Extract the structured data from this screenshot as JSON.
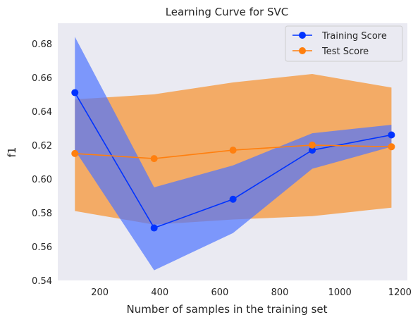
{
  "chart_data": {
    "type": "line",
    "title": "Learning Curve for SVC",
    "xlabel": "Number of samples in the training set",
    "ylabel": "f1",
    "xlim": [
      60,
      1225
    ],
    "ylim": [
      0.54,
      0.692
    ],
    "x_ticks": [
      200,
      400,
      600,
      800,
      1000,
      1200
    ],
    "y_ticks": [
      0.54,
      0.56,
      0.58,
      0.6,
      0.62,
      0.64,
      0.66,
      0.68
    ],
    "x_tick_labels": [
      "200",
      "400",
      "600",
      "800",
      "1000",
      "1200"
    ],
    "y_tick_labels": [
      "0.54",
      "0.56",
      "0.58",
      "0.60",
      "0.62",
      "0.64",
      "0.66",
      "0.68"
    ],
    "x": [
      117,
      381,
      644,
      908,
      1172
    ],
    "grid": false,
    "legend_position": "top-right",
    "background": "#eaeaf2",
    "series": [
      {
        "name": "Training Score",
        "values": [
          0.651,
          0.571,
          0.588,
          0.617,
          0.626
        ],
        "band_lower": [
          0.617,
          0.546,
          0.568,
          0.606,
          0.619
        ],
        "band_upper": [
          0.684,
          0.595,
          0.608,
          0.627,
          0.632
        ],
        "color": "#0033ff",
        "band_color": "#4d74ff"
      },
      {
        "name": "Test Score",
        "values": [
          0.615,
          0.612,
          0.617,
          0.62,
          0.619
        ],
        "band_lower": [
          0.581,
          0.573,
          0.576,
          0.578,
          0.583
        ],
        "band_upper": [
          0.647,
          0.65,
          0.657,
          0.662,
          0.654
        ],
        "color": "#ff7f0e",
        "band_color": "#f5a04e"
      }
    ]
  }
}
